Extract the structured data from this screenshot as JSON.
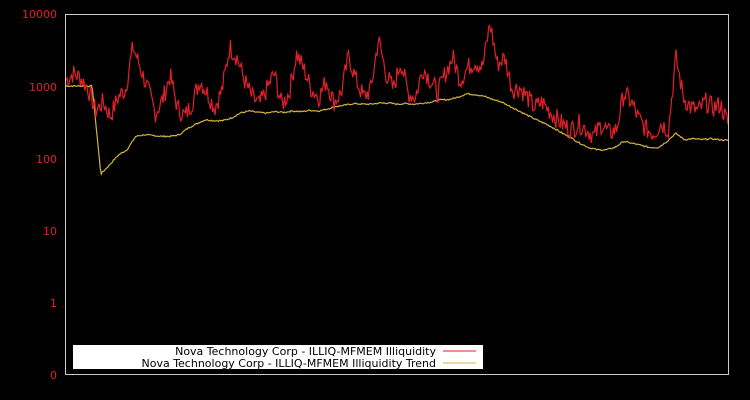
{
  "chart_data": {
    "type": "line",
    "title": "",
    "xlabel": "",
    "ylabel": "",
    "yscale": "log",
    "ylim": [
      0.1,
      10000
    ],
    "yticks": [
      "10000",
      "1000",
      "100",
      "10",
      "1",
      "0"
    ],
    "grid": false,
    "legend_position": "lower-left (inside plot)",
    "colors": {
      "background": "#000000",
      "frame": "#cccccc",
      "tick_labels": "#e0202a",
      "series_illiquidity": "#e0202a",
      "series_trend": "#d4b040",
      "legend_background": "#ffffff"
    },
    "x_index_count": 60,
    "series": [
      {
        "name": "Nova Technology Corp - ILLIQ-MFMEM Illiquidity",
        "color": "#e0202a",
        "values": [
          1200,
          1500,
          1300,
          900,
          450,
          600,
          380,
          700,
          900,
          3500,
          1800,
          900,
          420,
          650,
          1400,
          500,
          380,
          600,
          1200,
          800,
          500,
          900,
          3500,
          2500,
          1200,
          700,
          550,
          900,
          1500,
          550,
          800,
          2800,
          1700,
          900,
          700,
          1200,
          600,
          800,
          2600,
          1200,
          700,
          900,
          4500,
          1500,
          900,
          2200,
          800,
          700,
          1800,
          1200,
          800,
          1500,
          2500,
          1200,
          1800,
          2200,
          1800,
          7500,
          2000,
          2500,
          900,
          950,
          700,
          500,
          600,
          450,
          350,
          280,
          250,
          300,
          250,
          200,
          300,
          220,
          250,
          800,
          600,
          350,
          250,
          220,
          300,
          250,
          2500,
          700,
          500,
          450,
          600,
          500,
          550,
          300
        ]
      },
      {
        "name": "Nova Technology Corp - ILLIQ-MFMEM Illiquidity Trend",
        "color": "#d4b040",
        "values": [
          1000,
          1000,
          1000,
          1000,
          60,
          80,
          110,
          130,
          200,
          210,
          205,
          200,
          200,
          210,
          260,
          300,
          340,
          330,
          330,
          360,
          420,
          450,
          430,
          420,
          440,
          430,
          450,
          440,
          460,
          450,
          480,
          520,
          540,
          570,
          560,
          560,
          580,
          580,
          560,
          570,
          560,
          580,
          600,
          640,
          650,
          700,
          780,
          760,
          720,
          650,
          600,
          520,
          450,
          390,
          340,
          300,
          260,
          220,
          190,
          160,
          140,
          130,
          130,
          140,
          170,
          160,
          150,
          140,
          140,
          170,
          220,
          180,
          185,
          180,
          185,
          180,
          175
        ]
      }
    ]
  },
  "legend": {
    "items": [
      {
        "label": "Nova Technology Corp - ILLIQ-MFMEM Illiquidity",
        "color": "#e0202a"
      },
      {
        "label": "Nova Technology Corp - ILLIQ-MFMEM Illiquidity Trend",
        "color": "#d4b040"
      }
    ]
  },
  "axis": {
    "y_labels": [
      "10000",
      "1000",
      "100",
      "10",
      "1",
      "0"
    ]
  }
}
